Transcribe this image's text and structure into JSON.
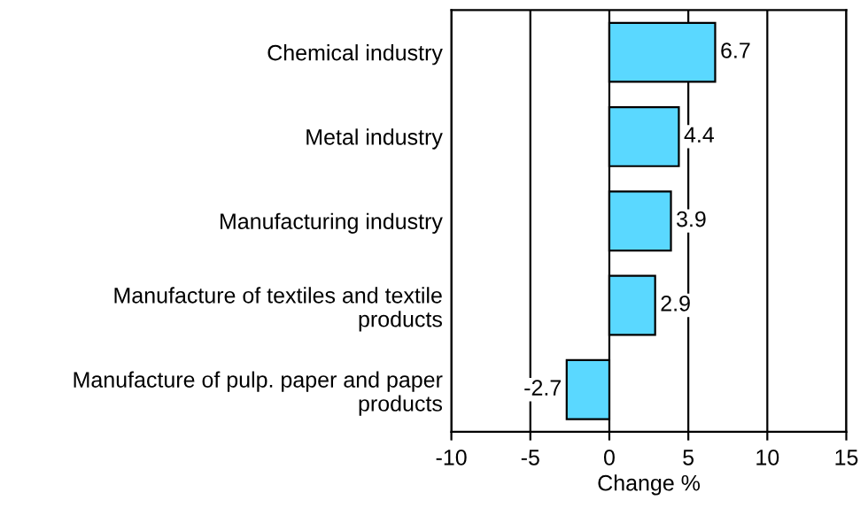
{
  "chart_data": {
    "type": "bar",
    "orientation": "horizontal",
    "xlabel": "Change %",
    "categories": [
      "Chemical industry",
      "Metal industry",
      "Manufacturing industry",
      "Manufacture of textiles and textile\nproducts",
      "Manufacture of pulp. paper and paper\nproducts"
    ],
    "values": [
      6.7,
      4.4,
      3.9,
      2.9,
      -2.7
    ],
    "color": "#5ad8ff",
    "xlim": [
      -10,
      15
    ],
    "xticks": [
      -10,
      -5,
      0,
      5,
      10,
      15
    ],
    "grid": "x",
    "data_labels": true
  }
}
